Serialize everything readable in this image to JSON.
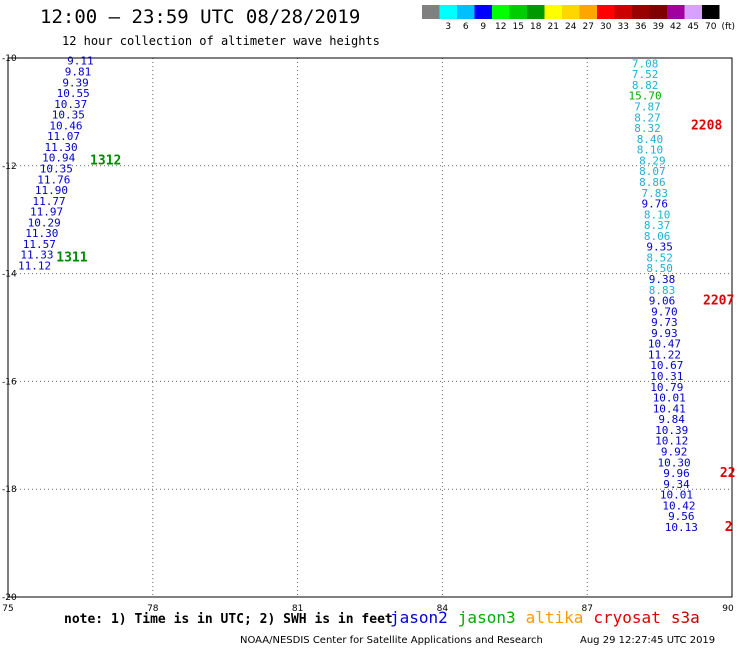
{
  "header": {
    "title": "12:00 — 23:59 UTC 08/28/2019",
    "subtitle": "12 hour collection of altimeter wave heights"
  },
  "legend": {
    "unit_label": "(ft)",
    "bins": [
      {
        "label": "",
        "color": "#808080"
      },
      {
        "label": "3",
        "color": "#00ffff"
      },
      {
        "label": "6",
        "color": "#00bfff"
      },
      {
        "label": "9",
        "color": "#0000ff"
      },
      {
        "label": "12",
        "color": "#00ff00"
      },
      {
        "label": "15",
        "color": "#00cd00"
      },
      {
        "label": "18",
        "color": "#009900"
      },
      {
        "label": "21",
        "color": "#ffff00"
      },
      {
        "label": "24",
        "color": "#ffd700"
      },
      {
        "label": "27",
        "color": "#ffa500"
      },
      {
        "label": "30",
        "color": "#ff0000"
      },
      {
        "label": "33",
        "color": "#cc0000"
      },
      {
        "label": "36",
        "color": "#990000"
      },
      {
        "label": "39",
        "color": "#800000"
      },
      {
        "label": "42",
        "color": "#a000a0"
      },
      {
        "label": "45",
        "color": "#d8a0ff"
      },
      {
        "label": "70",
        "color": "#000000"
      }
    ]
  },
  "chart_data": {
    "type": "scatter",
    "xlim": [
      75,
      90
    ],
    "ylim": [
      -20,
      -10
    ],
    "xticks": [
      75,
      78,
      81,
      84,
      87,
      90
    ],
    "yticks": [
      -10,
      -12,
      -14,
      -16,
      -18,
      -20
    ],
    "xtick_labels": [
      "75",
      "78",
      "81",
      "84",
      "87",
      "90"
    ],
    "ytick_labels": [
      "-10",
      "-12",
      "-14",
      "-16",
      "-18",
      "-20"
    ],
    "grid": true,
    "series": [
      {
        "points": [
          {
            "x": 76.5,
            "y": -10.05,
            "v": "9.11",
            "c": "#0000cc"
          },
          {
            "x": 76.45,
            "y": -10.25,
            "v": "9.81",
            "c": "#0000cc"
          },
          {
            "x": 76.4,
            "y": -10.45,
            "v": "9.39",
            "c": "#0000cc"
          },
          {
            "x": 76.35,
            "y": -10.65,
            "v": "10.55",
            "c": "#0000cc"
          },
          {
            "x": 76.3,
            "y": -10.85,
            "v": "10.37",
            "c": "#0000cc"
          },
          {
            "x": 76.25,
            "y": -11.05,
            "v": "10.35",
            "c": "#0000cc"
          },
          {
            "x": 76.2,
            "y": -11.25,
            "v": "10.46",
            "c": "#0000cc"
          },
          {
            "x": 76.15,
            "y": -11.45,
            "v": "11.07",
            "c": "#0000cc"
          },
          {
            "x": 76.1,
            "y": -11.65,
            "v": "11.30",
            "c": "#0000cc"
          },
          {
            "x": 76.05,
            "y": -11.85,
            "v": "10.94",
            "c": "#0000cc"
          },
          {
            "x": 76.0,
            "y": -12.05,
            "v": "10.35",
            "c": "#0000cc"
          },
          {
            "x": 75.95,
            "y": -12.25,
            "v": "11.76",
            "c": "#0000cc"
          },
          {
            "x": 75.9,
            "y": -12.45,
            "v": "11.90",
            "c": "#0000cc"
          },
          {
            "x": 75.85,
            "y": -12.65,
            "v": "11.77",
            "c": "#0000cc"
          },
          {
            "x": 75.8,
            "y": -12.85,
            "v": "11.97",
            "c": "#0000cc"
          },
          {
            "x": 75.75,
            "y": -13.05,
            "v": "10.29",
            "c": "#0000cc"
          },
          {
            "x": 75.7,
            "y": -13.25,
            "v": "11.30",
            "c": "#0000cc"
          },
          {
            "x": 75.65,
            "y": -13.45,
            "v": "11.57",
            "c": "#0000cc"
          },
          {
            "x": 75.6,
            "y": -13.65,
            "v": "11.33",
            "c": "#0000cc"
          },
          {
            "x": 75.55,
            "y": -13.85,
            "v": "11.12",
            "c": "#0000cc"
          }
        ]
      },
      {
        "points": [
          {
            "x": 88.2,
            "y": -10.1,
            "v": "7.08",
            "c": "#20b0d0"
          },
          {
            "x": 88.2,
            "y": -10.3,
            "v": "7.52",
            "c": "#20b0d0"
          },
          {
            "x": 88.2,
            "y": -10.5,
            "v": "8.82",
            "c": "#20b0d0"
          },
          {
            "x": 88.2,
            "y": -10.7,
            "v": "15.70",
            "c": "#00aa00"
          },
          {
            "x": 88.25,
            "y": -10.9,
            "v": "7.87",
            "c": "#20b0d0"
          },
          {
            "x": 88.25,
            "y": -11.1,
            "v": "8.27",
            "c": "#20b0d0"
          },
          {
            "x": 88.25,
            "y": -11.3,
            "v": "8.32",
            "c": "#20b0d0"
          },
          {
            "x": 88.3,
            "y": -11.5,
            "v": "8.40",
            "c": "#20b0d0"
          },
          {
            "x": 88.3,
            "y": -11.7,
            "v": "8.10",
            "c": "#20b0d0"
          },
          {
            "x": 88.35,
            "y": -11.9,
            "v": "8.29",
            "c": "#20b0d0"
          },
          {
            "x": 88.35,
            "y": -12.1,
            "v": "8.07",
            "c": "#20b0d0"
          },
          {
            "x": 88.35,
            "y": -12.3,
            "v": "8.86",
            "c": "#20b0d0"
          },
          {
            "x": 88.4,
            "y": -12.5,
            "v": "7.83",
            "c": "#20b0d0"
          },
          {
            "x": 88.4,
            "y": -12.7,
            "v": "9.76",
            "c": "#0000cc"
          },
          {
            "x": 88.45,
            "y": -12.9,
            "v": "8.10",
            "c": "#20b0d0"
          },
          {
            "x": 88.45,
            "y": -13.1,
            "v": "8.37",
            "c": "#20b0d0"
          },
          {
            "x": 88.45,
            "y": -13.3,
            "v": "8.06",
            "c": "#20b0d0"
          },
          {
            "x": 88.5,
            "y": -13.5,
            "v": "9.35",
            "c": "#0000cc"
          },
          {
            "x": 88.5,
            "y": -13.7,
            "v": "8.52",
            "c": "#20b0d0"
          },
          {
            "x": 88.5,
            "y": -13.9,
            "v": "8.50",
            "c": "#20b0d0"
          },
          {
            "x": 88.55,
            "y": -14.1,
            "v": "9.38",
            "c": "#0000cc"
          },
          {
            "x": 88.55,
            "y": -14.3,
            "v": "8.83",
            "c": "#20b0d0"
          },
          {
            "x": 88.55,
            "y": -14.5,
            "v": "9.06",
            "c": "#0000cc"
          },
          {
            "x": 88.6,
            "y": -14.7,
            "v": "9.70",
            "c": "#0000cc"
          },
          {
            "x": 88.6,
            "y": -14.9,
            "v": "9.73",
            "c": "#0000cc"
          },
          {
            "x": 88.6,
            "y": -15.1,
            "v": "9.93",
            "c": "#0000cc"
          },
          {
            "x": 88.6,
            "y": -15.3,
            "v": "10.47",
            "c": "#0000cc"
          },
          {
            "x": 88.6,
            "y": -15.5,
            "v": "11.22",
            "c": "#0000cc"
          },
          {
            "x": 88.65,
            "y": -15.7,
            "v": "10.67",
            "c": "#0000cc"
          },
          {
            "x": 88.65,
            "y": -15.9,
            "v": "10.31",
            "c": "#0000cc"
          },
          {
            "x": 88.65,
            "y": -16.1,
            "v": "10.79",
            "c": "#0000cc"
          },
          {
            "x": 88.7,
            "y": -16.3,
            "v": "10.01",
            "c": "#0000cc"
          },
          {
            "x": 88.7,
            "y": -16.5,
            "v": "10.41",
            "c": "#0000cc"
          },
          {
            "x": 88.75,
            "y": -16.7,
            "v": "9.84",
            "c": "#0000cc"
          },
          {
            "x": 88.75,
            "y": -16.9,
            "v": "10.39",
            "c": "#0000cc"
          },
          {
            "x": 88.75,
            "y": -17.1,
            "v": "10.12",
            "c": "#0000cc"
          },
          {
            "x": 88.8,
            "y": -17.3,
            "v": "9.92",
            "c": "#0000cc"
          },
          {
            "x": 88.8,
            "y": -17.5,
            "v": "10.30",
            "c": "#0000cc"
          },
          {
            "x": 88.85,
            "y": -17.7,
            "v": "9.96",
            "c": "#0000cc"
          },
          {
            "x": 88.85,
            "y": -17.9,
            "v": "9.34",
            "c": "#0000cc"
          },
          {
            "x": 88.85,
            "y": -18.1,
            "v": "10.01",
            "c": "#0000cc"
          },
          {
            "x": 88.9,
            "y": -18.3,
            "v": "10.42",
            "c": "#0000cc"
          },
          {
            "x": 88.95,
            "y": -18.5,
            "v": "9.56",
            "c": "#0000cc"
          },
          {
            "x": 88.95,
            "y": -18.7,
            "v": "10.13",
            "c": "#0000cc"
          }
        ]
      }
    ],
    "pass_labels": [
      {
        "x": 76.7,
        "y": -11.9,
        "text": "1312",
        "c": "#008800"
      },
      {
        "x": 76.0,
        "y": -13.7,
        "text": "1311",
        "c": "#008800"
      },
      {
        "x": 89.15,
        "y": -11.25,
        "text": "2208",
        "c": "#dd0000"
      },
      {
        "x": 89.4,
        "y": -14.5,
        "text": "2207",
        "c": "#dd0000"
      },
      {
        "x": 89.75,
        "y": -17.7,
        "text": "22",
        "c": "#dd0000"
      },
      {
        "x": 89.85,
        "y": -18.7,
        "text": "2",
        "c": "#dd0000"
      }
    ]
  },
  "notes": {
    "note": "note: 1) Time is in UTC; 2) SWH is in feet",
    "satellites": [
      {
        "name": "jason2",
        "color": "#0000dd"
      },
      {
        "name": "jason3",
        "color": "#00aa00"
      },
      {
        "name": "altika",
        "color": "#ff9900"
      },
      {
        "name": "cryosat",
        "color": "#dd0000"
      },
      {
        "name": "s3a",
        "color": "#cc0000"
      }
    ]
  },
  "footer": {
    "credit": "NOAA/NESDIS Center for Satellite Applications and Research",
    "timestamp": "Aug 29 12:27:45 UTC 2019"
  }
}
